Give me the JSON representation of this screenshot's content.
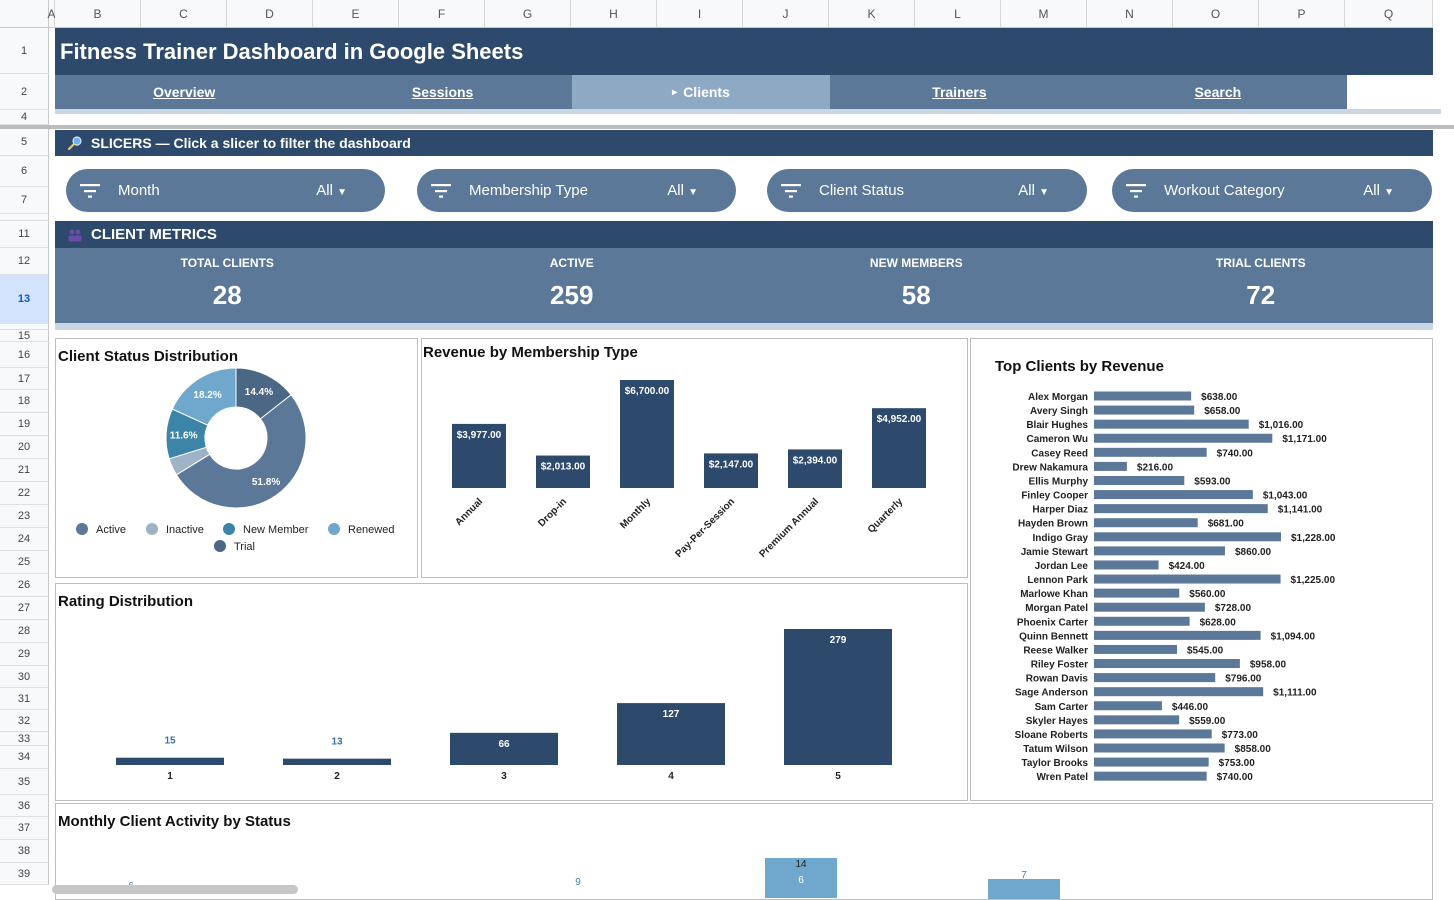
{
  "columns": [
    "A",
    "B",
    "C",
    "D",
    "E",
    "F",
    "G",
    "H",
    "I",
    "J",
    "K",
    "L",
    "M",
    "N",
    "O",
    "P",
    "Q"
  ],
  "rows": [
    "1",
    "2",
    "4",
    "5",
    "6",
    "7",
    "11",
    "12",
    "13",
    "15",
    "16",
    "17",
    "18",
    "19",
    "20",
    "21",
    "22",
    "23",
    "24",
    "25",
    "26",
    "27",
    "28",
    "29",
    "30",
    "31",
    "32",
    "33",
    "34",
    "35",
    "36",
    "37",
    "38",
    "39"
  ],
  "title": "Fitness Trainer Dashboard in Google Sheets",
  "tabs": [
    "Overview",
    "Sessions",
    "Clients",
    "Trainers",
    "Search"
  ],
  "active_tab": "Clients",
  "slicers_header": "SLICERS — Click a slicer to filter the dashboard",
  "slicers": [
    {
      "label": "Month",
      "value": "All"
    },
    {
      "label": "Membership Type",
      "value": "All"
    },
    {
      "label": "Client Status",
      "value": "All"
    },
    {
      "label": "Workout Category",
      "value": "All"
    }
  ],
  "metrics_header": "CLIENT METRICS",
  "metrics": [
    {
      "label": "TOTAL CLIENTS",
      "value": "28"
    },
    {
      "label": "ACTIVE",
      "value": "259"
    },
    {
      "label": "NEW MEMBERS",
      "value": "58"
    },
    {
      "label": "TRIAL CLIENTS",
      "value": "72"
    }
  ],
  "colors": {
    "primary": "#2d4a6c",
    "secondary": "#5b7898",
    "active_tab": "#8ea9c3",
    "bar": "#2d4a6c",
    "hbar": "#5b7898"
  },
  "charts": {
    "status": {
      "title": "Client Status Distribution"
    },
    "membership": {
      "title": "Revenue by Membership Type"
    },
    "topclients": {
      "title": "Top Clients by Revenue"
    },
    "rating": {
      "title": "Rating Distribution"
    },
    "monthly": {
      "title": "Monthly Client Activity by Status"
    }
  },
  "chart_data": [
    {
      "type": "pie",
      "title": "Client Status Distribution",
      "labels": [
        "Active",
        "Inactive",
        "New Member",
        "Renewed",
        "Trial"
      ],
      "values": [
        51.8,
        4.0,
        11.6,
        18.2,
        14.4
      ],
      "value_labels": [
        "51.8%",
        "",
        "11.6%",
        "18.2%",
        "14.4%"
      ],
      "colors": [
        "#5b7898",
        "#9fb3c6",
        "#3d85a8",
        "#6fa8cc",
        "#4a6786"
      ],
      "legend": "bottom"
    },
    {
      "type": "bar",
      "title": "Revenue by Membership Type",
      "categories": [
        "Annual",
        "Drop-in",
        "Monthly",
        "Pay-Per-Session",
        "Premium Annual",
        "Quarterly"
      ],
      "values": [
        3977,
        2013,
        6700,
        2147,
        2394,
        4952
      ],
      "value_labels": [
        "$3,977.00",
        "$2,013.00",
        "$6,700.00",
        "$2,147.00",
        "$2,394.00",
        "$4,952.00"
      ]
    },
    {
      "type": "bar",
      "orientation": "horizontal",
      "title": "Top Clients by Revenue",
      "categories": [
        "Alex Morgan",
        "Avery Singh",
        "Blair Hughes",
        "Cameron Wu",
        "Casey Reed",
        "Drew Nakamura",
        "Ellis Murphy",
        "Finley Cooper",
        "Harper Diaz",
        "Hayden Brown",
        "Indigo Gray",
        "Jamie Stewart",
        "Jordan Lee",
        "Lennon Park",
        "Marlowe Khan",
        "Morgan Patel",
        "Phoenix Carter",
        "Quinn Bennett",
        "Reese Walker",
        "Riley Foster",
        "Rowan Davis",
        "Sage Anderson",
        "Sam Carter",
        "Skyler Hayes",
        "Sloane Roberts",
        "Tatum Wilson",
        "Taylor Brooks",
        "Wren Patel"
      ],
      "values": [
        638,
        658,
        1016,
        1171,
        740,
        216,
        593,
        1043,
        1141,
        681,
        1228,
        860,
        424,
        1225,
        560,
        728,
        628,
        1094,
        545,
        958,
        796,
        1111,
        446,
        559,
        773,
        858,
        753,
        740
      ],
      "value_labels": [
        "$638.00",
        "$658.00",
        "$1,016.00",
        "$1,171.00",
        "$740.00",
        "$216.00",
        "$593.00",
        "$1,043.00",
        "$1,141.00",
        "$681.00",
        "$1,228.00",
        "$860.00",
        "$424.00",
        "$1,225.00",
        "$560.00",
        "$728.00",
        "$628.00",
        "$1,094.00",
        "$545.00",
        "$958.00",
        "$796.00",
        "$1,111.00",
        "$446.00",
        "$559.00",
        "$773.00",
        "$858.00",
        "$753.00",
        "$740.00"
      ]
    },
    {
      "type": "bar",
      "title": "Rating Distribution",
      "categories": [
        "1",
        "2",
        "3",
        "4",
        "5"
      ],
      "values": [
        15,
        13,
        66,
        127,
        279
      ]
    },
    {
      "type": "bar",
      "title": "Monthly Client Activity by Status",
      "visible_values": [
        "6",
        "9",
        "14",
        "6",
        "7"
      ]
    }
  ]
}
